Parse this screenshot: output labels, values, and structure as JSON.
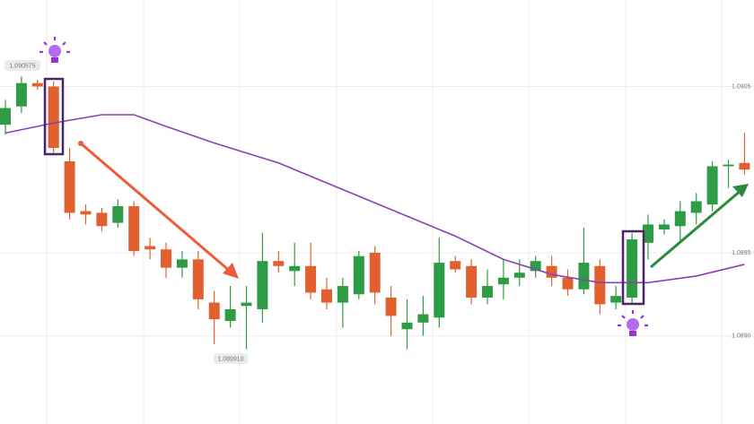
{
  "chart_data": {
    "type": "candlestick",
    "up_color": "#2e9b45",
    "down_color": "#e2602f",
    "ylim": [
      1.08847,
      1.09102
    ],
    "yticks": [
      {
        "value": 1.089,
        "label": "1.0890"
      },
      1.0895,
      1.0905
    ],
    "grid": true,
    "annotations": [
      "1.090575",
      "1.089910"
    ],
    "open": [
      1.09027,
      1.09038,
      1.09052,
      1.0905,
      1.09005,
      1.08975,
      1.08974,
      1.08968,
      1.08978,
      1.08954,
      1.08952,
      1.08941,
      1.08946,
      1.0892,
      1.08909,
      1.08918,
      1.08916,
      1.08945,
      1.08939,
      1.08942,
      1.08928,
      1.0892,
      1.08925,
      1.0895,
      1.08923,
      1.08904,
      1.08908,
      1.08911,
      1.08945,
      1.08942,
      1.08923,
      1.08931,
      1.08935,
      1.08939,
      1.08942,
      1.08935,
      1.08928,
      1.08942,
      1.0892,
      1.08923,
      1.08956,
      1.08964,
      1.08966,
      1.08974,
      1.08979,
      1.09002,
      1.09004
    ],
    "high": [
      1.09042,
      1.09056,
      1.09054,
      1.09053,
      1.09013,
      1.08979,
      1.08977,
      1.08982,
      1.08981,
      1.08959,
      1.08956,
      1.08951,
      1.08951,
      1.08927,
      1.0893,
      1.0893,
      1.08962,
      1.08951,
      1.08956,
      1.08956,
      1.08935,
      1.08935,
      1.08951,
      1.08954,
      1.0893,
      1.08922,
      1.08924,
      1.08959,
      1.08948,
      1.08946,
      1.0894,
      1.08946,
      1.08946,
      1.08948,
      1.08948,
      1.0894,
      1.08965,
      1.08946,
      1.0893,
      1.08962,
      1.08973,
      1.0897,
      1.08981,
      1.08986,
      1.09005,
      1.09006,
      1.09022
    ],
    "low": [
      1.09021,
      1.09034,
      1.09048,
      1.0901,
      1.0897,
      1.08967,
      1.08963,
      1.08965,
      1.08948,
      1.08946,
      1.08935,
      1.08935,
      1.08916,
      1.08895,
      1.08905,
      1.08892,
      1.08908,
      1.08938,
      1.0893,
      1.08922,
      1.08916,
      1.08905,
      1.08922,
      1.08919,
      1.089,
      1.08892,
      1.089,
      1.08905,
      1.08938,
      1.08919,
      1.08919,
      1.08922,
      1.0893,
      1.08935,
      1.0893,
      1.08924,
      1.08925,
      1.08913,
      1.08916,
      1.08919,
      1.08946,
      1.08961,
      1.08956,
      1.08967,
      1.08975,
      1.08989,
      1.08997
    ],
    "close": [
      1.09037,
      1.09052,
      1.0905,
      1.09013,
      1.08974,
      1.08973,
      1.08966,
      1.08978,
      1.08951,
      1.08952,
      1.08941,
      1.08946,
      1.08922,
      1.0891,
      1.08916,
      1.0892,
      1.08945,
      1.08942,
      1.08942,
      1.08926,
      1.0892,
      1.0893,
      1.08948,
      1.08926,
      1.08912,
      1.08908,
      1.08913,
      1.08944,
      1.0894,
      1.08923,
      1.0893,
      1.08935,
      1.08938,
      1.08945,
      1.08935,
      1.08928,
      1.08944,
      1.08919,
      1.08924,
      1.08958,
      1.08967,
      1.08967,
      1.08975,
      1.08981,
      1.09002,
      1.09003,
      1.09
    ],
    "moving_average": {
      "color": "#8a3fb5",
      "x": [
        0,
        3,
        6,
        8,
        10,
        13,
        17,
        21,
        25,
        28,
        31,
        34,
        37,
        40,
        43,
        46
      ],
      "values": [
        1.09022,
        1.09028,
        1.09033,
        1.09033,
        1.09026,
        1.09016,
        1.09004,
        1.08988,
        1.08972,
        1.0896,
        1.08946,
        1.08937,
        1.08932,
        1.08932,
        1.08936,
        1.08943
      ]
    }
  }
}
